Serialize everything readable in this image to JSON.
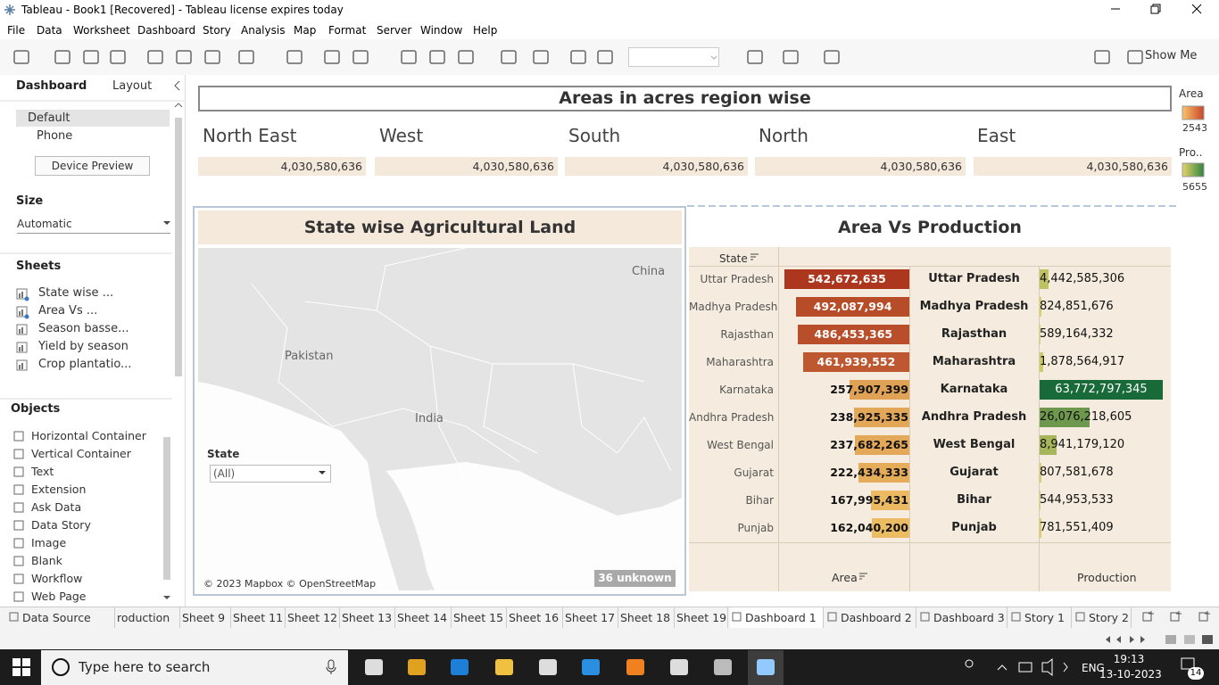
{
  "window": {
    "title": "Tableau - Book1 [Recovered] - Tableau license expires today"
  },
  "menu": [
    "File",
    "Data",
    "Worksheet",
    "Dashboard",
    "Story",
    "Analysis",
    "Map",
    "Format",
    "Server",
    "Window",
    "Help"
  ],
  "toolbar": {
    "show_me": "Show Me"
  },
  "side_panel": {
    "tabs": [
      "Dashboard",
      "Layout"
    ],
    "devices": [
      "Default",
      "Phone"
    ],
    "device_preview": "Device Preview",
    "size_heading": "Size",
    "size_value": "Automatic",
    "sheets_heading": "Sheets",
    "sheets": [
      "State wise ...",
      "Area Vs ...",
      "Season basse...",
      "Yield by season",
      "Crop plantatio..."
    ],
    "objects_heading": "Objects",
    "objects": [
      "Horizontal Container",
      "Vertical Container",
      "Text",
      "Extension",
      "Ask Data",
      "Data Story",
      "Image",
      "Blank",
      "Workflow",
      "Web Page"
    ]
  },
  "dashboard": {
    "title": "Areas in acres region wise",
    "regions": [
      {
        "name": "North East",
        "total": "4,030,580,636"
      },
      {
        "name": "West",
        "total": "4,030,580,636"
      },
      {
        "name": "South",
        "total": "4,030,580,636"
      },
      {
        "name": "North",
        "total": "4,030,580,636"
      },
      {
        "name": "East",
        "total": "4,030,580,636"
      }
    ],
    "legend": {
      "area_title": "Area",
      "area_value": "2543",
      "production_title": "Pro..",
      "production_value": "5655"
    },
    "map": {
      "title": "State wise Agricultural Land",
      "labels": [
        "China",
        "Pakistan",
        "India"
      ],
      "filter_title": "State",
      "filter_value": "(All)",
      "attribution": "© 2023 Mapbox © OpenStreetMap",
      "unknown": "36 unknown"
    },
    "area_vs_production": {
      "title": "Area Vs Production",
      "row_header": "State",
      "area_header": "Area",
      "production_header": "Production",
      "states": [
        "Uttar Pradesh",
        "Madhya Pradesh",
        "Rajasthan",
        "Maharashtra",
        "Karnataka",
        "Andhra Pradesh",
        "West Bengal",
        "Gujarat",
        "Bihar",
        "Punjab"
      ],
      "area": {
        "values": [
          542672635,
          492087994,
          486453365,
          461939552,
          257907399,
          238925335,
          237682265,
          222434333,
          167995431,
          162040200
        ],
        "value_labels": [
          "542,672,635",
          "492,087,994",
          "486,453,365",
          "461,939,552",
          "257,907,399",
          "238,925,335",
          "237,682,265",
          "222,434,333",
          "167,995,431",
          "162,040,200"
        ]
      },
      "production": {
        "values": [
          4442585306,
          824851676,
          589164332,
          1878564917,
          63772797345,
          26076218605,
          8941179120,
          807581678,
          544953533,
          781551409
        ],
        "value_labels": [
          "4,442,585,306",
          "824,851,676",
          "589,164,332",
          "1,878,564,917",
          "63,772,797,345",
          "26,076,218,605",
          "8,941,179,120",
          "807,581,678",
          "544,953,533",
          "781,551,409"
        ]
      }
    }
  },
  "tabs": [
    "Data Source",
    "roduction",
    "Sheet 9",
    "Sheet 11",
    "Sheet 12",
    "Sheet 13",
    "Sheet 14",
    "Sheet 15",
    "Sheet 16",
    "Sheet 17",
    "Sheet 18",
    "Sheet 19",
    "Dashboard 1",
    "Dashboard 2",
    "Dashboard 3",
    "Story 1",
    "Story 2"
  ],
  "active_tab": "Dashboard 1",
  "taskbar": {
    "search": "Type here to search",
    "language": "ENG",
    "time": "19:13",
    "date": "13-10-2023",
    "notifications": "14"
  }
}
